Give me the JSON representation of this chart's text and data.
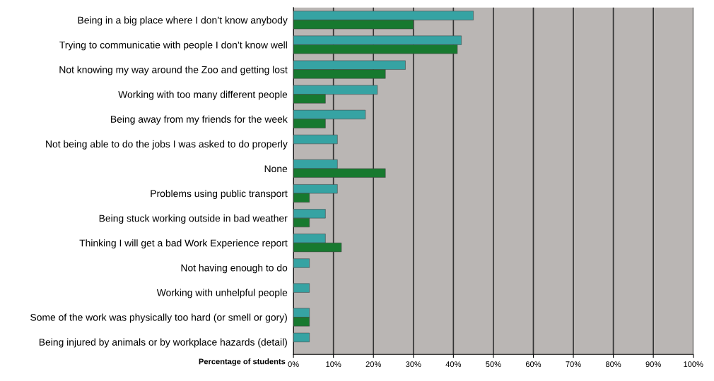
{
  "chart_data": {
    "type": "bar",
    "orientation": "horizontal",
    "xlabel": "Percentage of students",
    "categories": [
      "Being in a big place where I don’t know anybody",
      "Trying to communicatie with people I don’t know well",
      "Not knowing my way around the Zoo and getting lost",
      "Working with too many different people",
      "Being away from my friends for the week",
      "Not being able to do the jobs I was asked to do properly",
      "None",
      "Problems using public transport",
      "Being stuck working outside in bad weather",
      "Thinking I will get a bad Work Experience report",
      "Not having enough to do",
      "Working with unhelpful people",
      "Some of the work was physically too hard (or smell or gory)",
      "Being injured by animals or by workplace hazards (detail)"
    ],
    "series": [
      {
        "color": "#36a3a3",
        "values": [
          45,
          42,
          28,
          21,
          18,
          11,
          11,
          11,
          8,
          8,
          4,
          4,
          4,
          4
        ]
      },
      {
        "color": "#17792f",
        "values": [
          30,
          41,
          23,
          8,
          8,
          null,
          23,
          4,
          4,
          12,
          null,
          null,
          4,
          null
        ]
      }
    ],
    "xlim": [
      0,
      100
    ],
    "xticks": [
      {
        "value": 0,
        "label": "0%"
      },
      {
        "value": 10,
        "label": "10%"
      },
      {
        "value": 20,
        "label": "20%"
      },
      {
        "value": 30,
        "label": "30%"
      },
      {
        "value": 40,
        "label": "40%"
      },
      {
        "value": 50,
        "label": "50%"
      },
      {
        "value": 60,
        "label": "60%"
      },
      {
        "value": 70,
        "label": "70%"
      },
      {
        "value": 80,
        "label": "80%"
      },
      {
        "value": 90,
        "label": "90%"
      },
      {
        "value": 100,
        "label": "100%"
      }
    ],
    "grid": "x"
  }
}
